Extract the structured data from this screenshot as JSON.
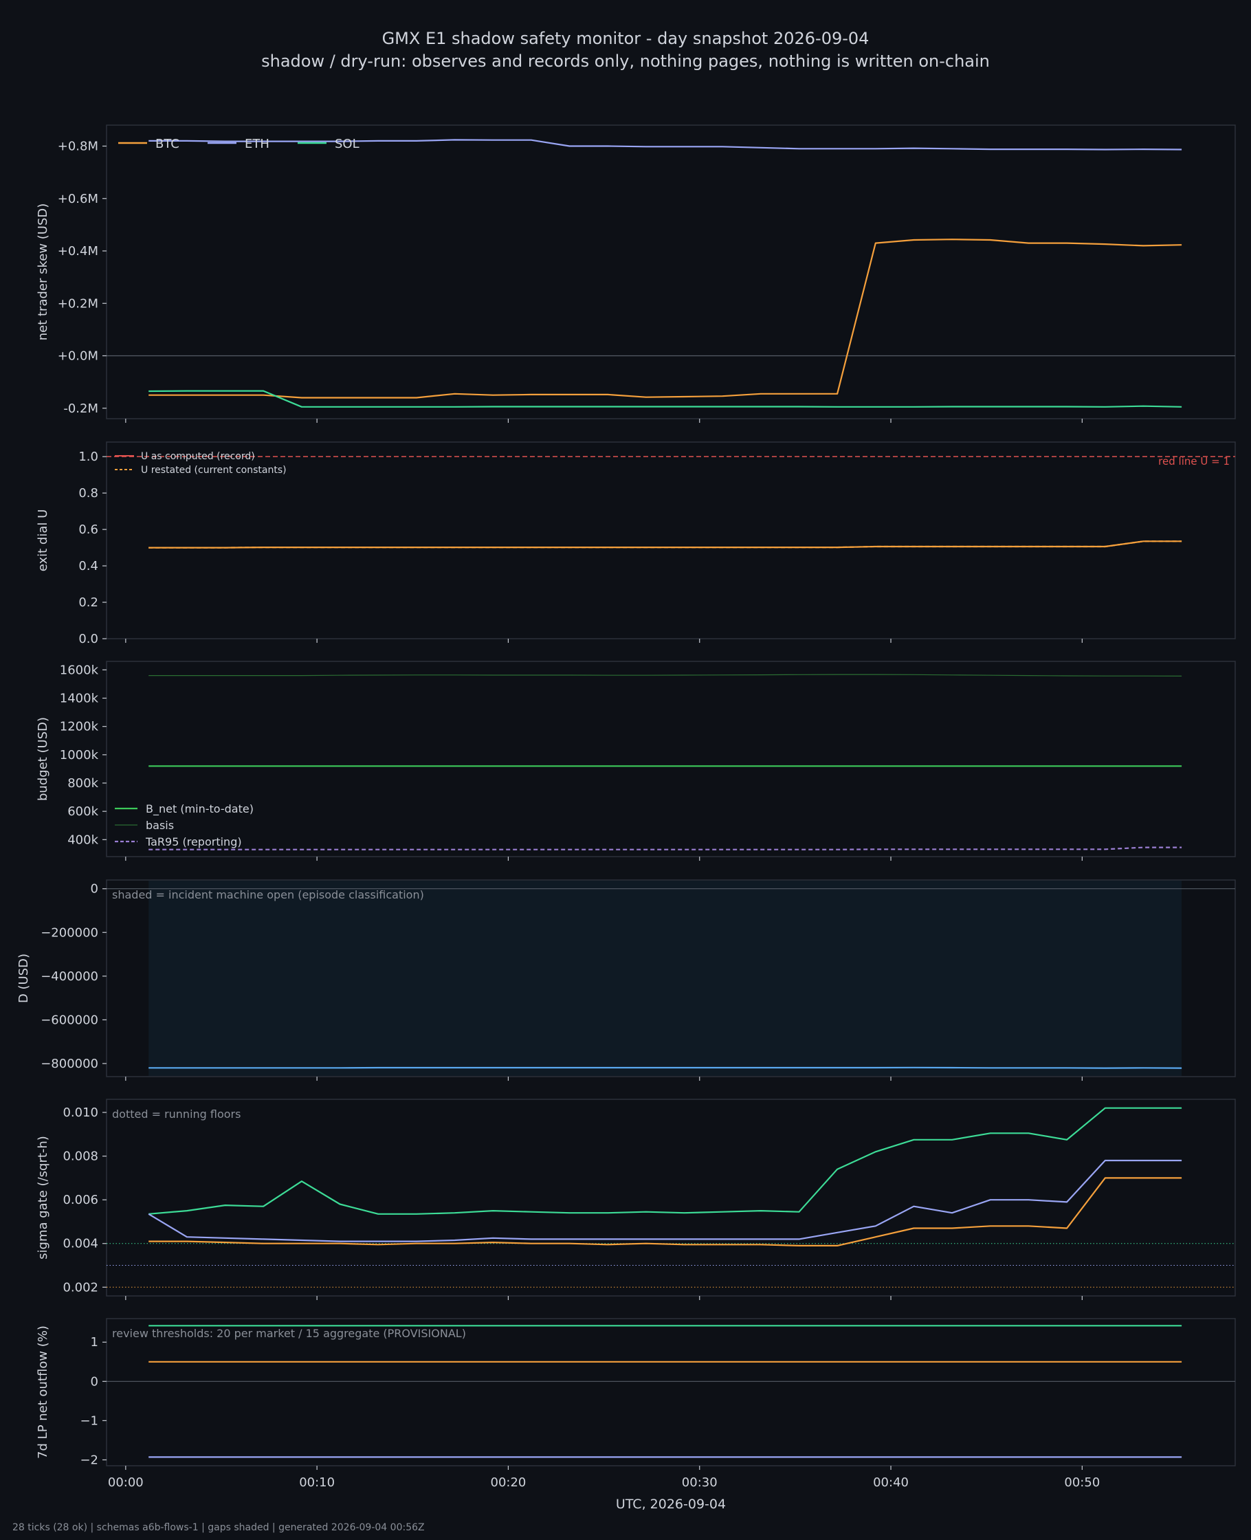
{
  "title": "GMX E1 shadow safety monitor - day snapshot 2026-09-04",
  "subtitle": "shadow / dry-run: observes and records only, nothing pages, nothing is written on-chain",
  "footer": "28 ticks (28 ok) | schemas a6b-flows-1 | gaps shaded | generated 2026-09-04 00:56Z",
  "colors": {
    "background": "#0e1117",
    "panel_border": "#2c313a",
    "text": "#d0d4dc",
    "muted_text": "#8a8f98",
    "btc": "#f5a03c",
    "eth": "#9aa6f5",
    "sol": "#3ddc97",
    "red_line": "#e0524f",
    "b_net": "#3cc95a",
    "basis": "#2b6e33",
    "tar95": "#9b7fd4",
    "d": "#5aa9f0",
    "shade": "#0f1a24"
  },
  "chart_data": [
    {
      "id": "skew",
      "type": "line",
      "ylabel": "net trader skew (USD)",
      "ylim": [
        -0.24,
        0.88
      ],
      "yticks": [
        -0.2,
        0.0,
        0.2,
        0.4,
        0.6,
        0.8
      ],
      "ytick_labels": [
        "-0.2M",
        "+0.0M",
        "+0.2M",
        "+0.4M",
        "+0.6M",
        "+0.8M"
      ],
      "zero_line": true,
      "legend": {
        "placement": "top-left",
        "orientation": "horizontal",
        "entries": [
          "BTC",
          "ETH",
          "SOL"
        ]
      },
      "series": [
        {
          "name": "BTC",
          "color_key": "btc",
          "values": [
            -0.15,
            -0.15,
            -0.15,
            -0.15,
            -0.16,
            -0.16,
            -0.16,
            -0.16,
            -0.145,
            -0.15,
            -0.148,
            -0.148,
            -0.148,
            -0.158,
            -0.156,
            -0.154,
            -0.145,
            -0.145,
            -0.145,
            0.43,
            0.442,
            0.444,
            0.442,
            0.43,
            0.43,
            0.426,
            0.42,
            0.423
          ]
        },
        {
          "name": "ETH",
          "color_key": "eth",
          "values": [
            0.82,
            0.82,
            0.818,
            0.818,
            0.818,
            0.818,
            0.82,
            0.82,
            0.824,
            0.823,
            0.823,
            0.8,
            0.8,
            0.798,
            0.798,
            0.798,
            0.794,
            0.79,
            0.79,
            0.79,
            0.792,
            0.79,
            0.788,
            0.788,
            0.788,
            0.787,
            0.788,
            0.787
          ]
        },
        {
          "name": "SOL",
          "color_key": "sol",
          "values": [
            -0.135,
            -0.134,
            -0.134,
            -0.134,
            -0.195,
            -0.195,
            -0.195,
            -0.195,
            -0.195,
            -0.194,
            -0.194,
            -0.194,
            -0.194,
            -0.194,
            -0.194,
            -0.194,
            -0.194,
            -0.194,
            -0.195,
            -0.195,
            -0.195,
            -0.194,
            -0.194,
            -0.194,
            -0.194,
            -0.195,
            -0.192,
            -0.195
          ]
        }
      ]
    },
    {
      "id": "exit-dial",
      "type": "line",
      "ylabel": "exit dial U",
      "ylim": [
        0,
        1.08
      ],
      "yticks": [
        0.0,
        0.2,
        0.4,
        0.6,
        0.8,
        1.0
      ],
      "ytick_labels": [
        "0.0",
        "0.2",
        "0.4",
        "0.6",
        "0.8",
        "1.0"
      ],
      "legend": {
        "placement": "top-left",
        "entries": [
          "U as computed (record)",
          "U restated (current constants)"
        ]
      },
      "annotation": "red line U = 1",
      "red_line_value": 1.0,
      "series": [
        {
          "name": "U as computed (record)",
          "color_key": "btc",
          "values": [
            0.5,
            0.5,
            0.5,
            0.502,
            0.502,
            0.502,
            0.502,
            0.502,
            0.502,
            0.502,
            0.502,
            0.502,
            0.502,
            0.502,
            0.502,
            0.502,
            0.502,
            0.502,
            0.502,
            0.506,
            0.506,
            0.506,
            0.506,
            0.506,
            0.506,
            0.506,
            0.535,
            0.535
          ]
        },
        {
          "name": "U restated (current constants)",
          "color_key": "btc",
          "dashed": true,
          "values": [
            0.5,
            0.5,
            0.5,
            0.502,
            0.502,
            0.502,
            0.502,
            0.502,
            0.502,
            0.502,
            0.502,
            0.502,
            0.502,
            0.502,
            0.502,
            0.502,
            0.502,
            0.502,
            0.502,
            0.506,
            0.506,
            0.506,
            0.506,
            0.506,
            0.506,
            0.506,
            0.535,
            0.535
          ]
        }
      ]
    },
    {
      "id": "budget",
      "type": "line",
      "ylabel": "budget (USD)",
      "ylim": [
        280000,
        1660000
      ],
      "yticks": [
        400000,
        600000,
        800000,
        1000000,
        1200000,
        1400000,
        1600000
      ],
      "ytick_labels": [
        "400k",
        "600k",
        "800k",
        "1000k",
        "1200k",
        "1400k",
        "1600k"
      ],
      "legend": {
        "placement": "bottom-left",
        "entries": [
          "B_net (min-to-date)",
          "basis",
          "TaR95 (reporting)"
        ]
      },
      "series": [
        {
          "name": "B_net (min-to-date)",
          "color_key": "b_net",
          "values": [
            920000,
            920000,
            920000,
            920000,
            920000,
            920000,
            920000,
            920000,
            920000,
            920000,
            920000,
            920000,
            920000,
            920000,
            920000,
            920000,
            920000,
            920000,
            920000,
            920000,
            920000,
            920000,
            920000,
            920000,
            920000,
            920000,
            920000,
            920000
          ]
        },
        {
          "name": "basis",
          "color_key": "basis",
          "values": [
            1560000,
            1560000,
            1560000,
            1560000,
            1560000,
            1562000,
            1563000,
            1564000,
            1564000,
            1563000,
            1563000,
            1563000,
            1562000,
            1562000,
            1563000,
            1564000,
            1565000,
            1566000,
            1567000,
            1567000,
            1566000,
            1564000,
            1562000,
            1560000,
            1558000,
            1557000,
            1557000,
            1556000
          ]
        },
        {
          "name": "TaR95 (reporting)",
          "color_key": "tar95",
          "dashed": true,
          "values": [
            330000,
            330000,
            330000,
            330000,
            330000,
            330000,
            330000,
            330000,
            330000,
            330000,
            330000,
            330000,
            330000,
            330000,
            330000,
            330000,
            330000,
            330000,
            330000,
            332000,
            332000,
            332000,
            332000,
            332000,
            332000,
            332000,
            345000,
            345000
          ]
        }
      ]
    },
    {
      "id": "d-usd",
      "type": "area",
      "ylabel": "D (USD)",
      "ylim": [
        -860000,
        40000
      ],
      "yticks": [
        -800000,
        -600000,
        -400000,
        -200000,
        0
      ],
      "ytick_labels": [
        "−800000",
        "−600000",
        "−400000",
        "−200000",
        "0"
      ],
      "zero_line": true,
      "annotation": "shaded = incident machine open (episode classification)",
      "shade_range": [
        1.2,
        55.2
      ],
      "series": [
        {
          "name": "D",
          "color_key": "d",
          "values": [
            -820000,
            -820000,
            -820000,
            -820000,
            -820000,
            -820000,
            -819000,
            -819000,
            -819000,
            -819000,
            -819000,
            -819000,
            -819000,
            -819000,
            -819000,
            -819000,
            -819000,
            -819000,
            -819000,
            -819000,
            -818500,
            -819000,
            -820000,
            -820000,
            -820000,
            -821000,
            -820000,
            -821000
          ]
        }
      ]
    },
    {
      "id": "sigma-gate",
      "type": "line",
      "ylabel": "sigma gate (/sqrt-h)",
      "ylim": [
        0.0016,
        0.0106
      ],
      "yticks": [
        0.002,
        0.004,
        0.006,
        0.008,
        0.01
      ],
      "ytick_labels": [
        "0.002",
        "0.004",
        "0.006",
        "0.008",
        "0.010"
      ],
      "annotation": "dotted = running floors",
      "floors": [
        {
          "value": 0.004,
          "color_key": "sol"
        },
        {
          "value": 0.003,
          "color_key": "eth"
        },
        {
          "value": 0.002,
          "color_key": "btc"
        }
      ],
      "series": [
        {
          "name": "SOL",
          "color_key": "sol",
          "values": [
            0.00535,
            0.0055,
            0.00575,
            0.0057,
            0.00685,
            0.0058,
            0.00535,
            0.00535,
            0.0054,
            0.0055,
            0.00545,
            0.0054,
            0.0054,
            0.00545,
            0.0054,
            0.00545,
            0.0055,
            0.00545,
            0.0074,
            0.0082,
            0.00875,
            0.00875,
            0.00905,
            0.00905,
            0.00875,
            0.0102,
            0.0102,
            0.0102
          ]
        },
        {
          "name": "ETH",
          "color_key": "eth",
          "values": [
            0.00535,
            0.0043,
            0.00425,
            0.0042,
            0.00415,
            0.0041,
            0.0041,
            0.0041,
            0.00415,
            0.00425,
            0.0042,
            0.0042,
            0.0042,
            0.0042,
            0.0042,
            0.0042,
            0.0042,
            0.0042,
            0.0045,
            0.0048,
            0.0057,
            0.0054,
            0.006,
            0.006,
            0.0059,
            0.0078,
            0.0078,
            0.0078
          ]
        },
        {
          "name": "BTC",
          "color_key": "btc",
          "values": [
            0.0041,
            0.0041,
            0.00405,
            0.004,
            0.004,
            0.004,
            0.00395,
            0.004,
            0.004,
            0.00405,
            0.004,
            0.004,
            0.00395,
            0.004,
            0.00395,
            0.00395,
            0.00395,
            0.0039,
            0.0039,
            0.0043,
            0.0047,
            0.0047,
            0.0048,
            0.0048,
            0.0047,
            0.007,
            0.007,
            0.007
          ]
        }
      ]
    },
    {
      "id": "lp-outflow",
      "type": "line",
      "ylabel": "7d LP net outflow (%)",
      "ylim": [
        -2.15,
        1.6
      ],
      "yticks": [
        -2,
        -1,
        0,
        1
      ],
      "ytick_labels": [
        "−2",
        "−1",
        "0",
        "1"
      ],
      "zero_line": true,
      "annotation": "review thresholds: 20 per market / 15 aggregate (PROVISIONAL)",
      "series": [
        {
          "name": "SOL",
          "color_key": "sol",
          "values": [
            1.42,
            1.42,
            1.42,
            1.42,
            1.42,
            1.42,
            1.42,
            1.42,
            1.42,
            1.42,
            1.42,
            1.42,
            1.42,
            1.42,
            1.42,
            1.42,
            1.42,
            1.42,
            1.42,
            1.42,
            1.42,
            1.42,
            1.42,
            1.42,
            1.42,
            1.42,
            1.42,
            1.42
          ]
        },
        {
          "name": "BTC",
          "color_key": "btc",
          "values": [
            0.5,
            0.5,
            0.5,
            0.5,
            0.5,
            0.5,
            0.5,
            0.5,
            0.5,
            0.5,
            0.5,
            0.5,
            0.5,
            0.5,
            0.5,
            0.5,
            0.5,
            0.5,
            0.5,
            0.5,
            0.5,
            0.5,
            0.5,
            0.5,
            0.5,
            0.5,
            0.5,
            0.5
          ]
        },
        {
          "name": "ETH",
          "color_key": "eth",
          "values": [
            -1.93,
            -1.93,
            -1.93,
            -1.93,
            -1.93,
            -1.93,
            -1.93,
            -1.93,
            -1.93,
            -1.93,
            -1.93,
            -1.93,
            -1.93,
            -1.93,
            -1.93,
            -1.93,
            -1.93,
            -1.93,
            -1.93,
            -1.93,
            -1.93,
            -1.93,
            -1.93,
            -1.93,
            -1.93,
            -1.93,
            -1.93,
            -1.93
          ]
        }
      ]
    }
  ],
  "x_axis": {
    "xlabel": "UTC, 2026-09-04",
    "xlim": [
      -1.0,
      58.0
    ],
    "x": [
      1.2,
      3.2,
      5.2,
      7.2,
      9.2,
      11.2,
      13.2,
      15.2,
      17.2,
      19.2,
      21.2,
      23.2,
      25.2,
      27.2,
      29.2,
      31.2,
      33.2,
      35.2,
      37.2,
      39.2,
      41.2,
      43.2,
      45.2,
      47.2,
      49.2,
      51.2,
      53.2,
      55.2
    ],
    "ticks": [
      0,
      10,
      20,
      30,
      40,
      50
    ],
    "tick_labels": [
      "00:00",
      "00:10",
      "00:20",
      "00:30",
      "00:40",
      "00:50"
    ]
  }
}
